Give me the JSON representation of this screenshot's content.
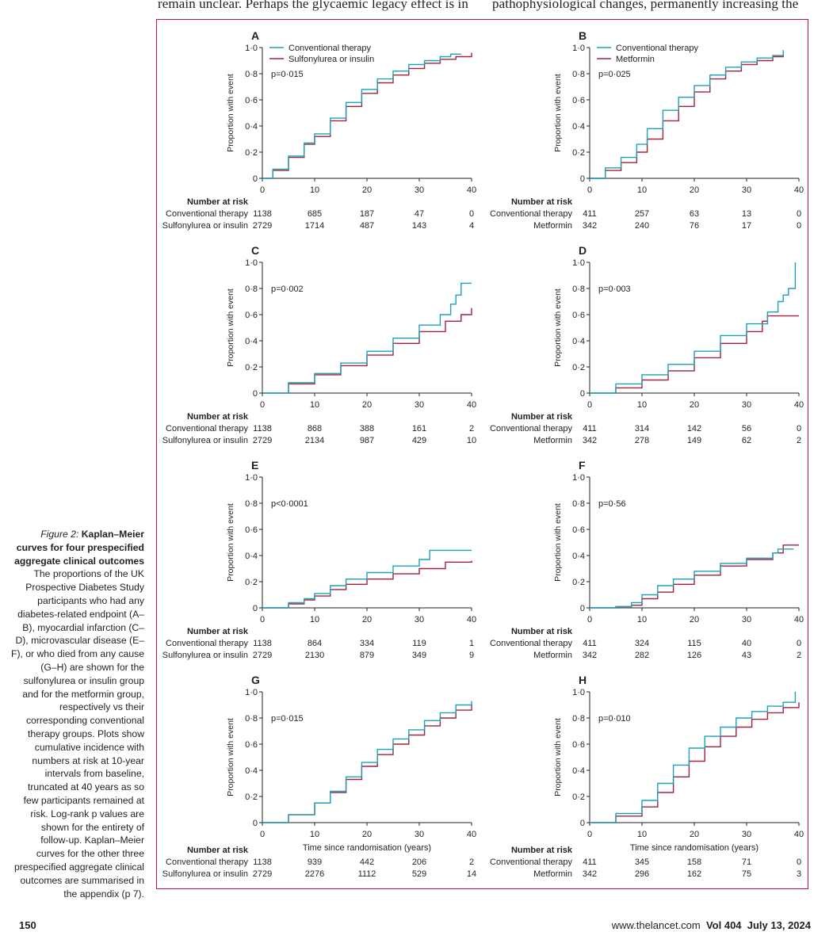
{
  "header": {
    "left_column_text": "remain unclear. Perhaps the glycaemic legacy effect is in",
    "right_column_text": "pathophysiological changes, permanently increasing the"
  },
  "figure": {
    "caption_label": "Figure 2:",
    "caption_title": "Kaplan–Meier curves for four prespecified aggregate clinical outcomes",
    "caption_body": "The proportions of the UK Prospective Diabetes Study participants who had any diabetes-related endpoint (A–B), myocardial infarction (C–D), microvascular disease (E–F), or who died from any cause (G–H) are shown for the sulfonylurea or insulin group and for the metformin group, respectively vs their corresponding conventional therapy groups. Plots show cumulative incidence with numbers at risk at 10-year intervals from baseline, truncated at 40 years as so few participants remained at risk. Log-rank p values are shown for the entirety of follow-up. Kaplan–Meier curves for the other three prespecified aggregate clinical outcomes are summarised in the appendix (p 7)."
  },
  "footer": {
    "page_number": "150",
    "journal": "www.thelancet.com",
    "volume": "Vol 404",
    "date": "July 13, 2024"
  },
  "colors": {
    "conventional": "#1aa3b8",
    "treatment": "#a3213f",
    "frame": "#c0143c"
  },
  "chart_data": [
    {
      "type": "line",
      "panel": "A",
      "title": "",
      "xlabel": "",
      "ylabel": "Proportion with event",
      "xlim": [
        0,
        40
      ],
      "ylim": [
        0,
        1
      ],
      "x_ticks": [
        0,
        10,
        20,
        30,
        40
      ],
      "y_ticks": [
        "0",
        "0·2",
        "0·4",
        "0·6",
        "0·8",
        "1·0"
      ],
      "legend": [
        "Conventional therapy",
        "Sulfonylurea or insulin"
      ],
      "legend_position": "top-left",
      "p_value": "p=0·015",
      "series": [
        {
          "name": "Conventional therapy",
          "x": [
            0,
            2,
            5,
            8,
            10,
            13,
            16,
            19,
            22,
            25,
            28,
            31,
            34,
            36,
            38
          ],
          "y": [
            0,
            0.07,
            0.17,
            0.27,
            0.34,
            0.46,
            0.58,
            0.68,
            0.76,
            0.82,
            0.87,
            0.9,
            0.93,
            0.95,
            0.95
          ]
        },
        {
          "name": "Sulfonylurea or insulin",
          "x": [
            0,
            2,
            5,
            8,
            10,
            13,
            16,
            19,
            22,
            25,
            28,
            31,
            34,
            37,
            40
          ],
          "y": [
            0,
            0.06,
            0.16,
            0.26,
            0.32,
            0.44,
            0.55,
            0.65,
            0.73,
            0.79,
            0.84,
            0.88,
            0.91,
            0.93,
            0.96
          ]
        }
      ],
      "risk_table": {
        "title": "Number at risk",
        "rows": [
          {
            "label": "Conventional therapy",
            "values": [
              "1138",
              "685",
              "187",
              "47",
              "0"
            ]
          },
          {
            "label": "Sulfonylurea or insulin",
            "values": [
              "2729",
              "1714",
              "487",
              "143",
              "4"
            ]
          }
        ]
      }
    },
    {
      "type": "line",
      "panel": "B",
      "title": "",
      "xlabel": "",
      "ylabel": "Proportion with event",
      "xlim": [
        0,
        40
      ],
      "ylim": [
        0,
        1
      ],
      "x_ticks": [
        0,
        10,
        20,
        30,
        40
      ],
      "y_ticks": [
        "0",
        "0·2",
        "0·4",
        "0·6",
        "0·8",
        "1·0"
      ],
      "legend": [
        "Conventional therapy",
        "Metformin"
      ],
      "legend_position": "top-left",
      "p_value": "p=0·025",
      "series": [
        {
          "name": "Conventional therapy",
          "x": [
            0,
            3,
            6,
            9,
            11,
            14,
            17,
            20,
            23,
            26,
            29,
            32,
            35,
            37
          ],
          "y": [
            0,
            0.08,
            0.16,
            0.26,
            0.38,
            0.52,
            0.62,
            0.71,
            0.79,
            0.85,
            0.89,
            0.92,
            0.94,
            0.98
          ]
        },
        {
          "name": "Metformin",
          "x": [
            0,
            3,
            6,
            9,
            11,
            14,
            17,
            20,
            23,
            26,
            29,
            32,
            35,
            37
          ],
          "y": [
            0,
            0.06,
            0.12,
            0.2,
            0.3,
            0.44,
            0.55,
            0.66,
            0.76,
            0.82,
            0.87,
            0.9,
            0.93,
            0.97
          ]
        }
      ],
      "risk_table": {
        "title": "Number at risk",
        "rows": [
          {
            "label": "Conventional therapy",
            "values": [
              "411",
              "257",
              "63",
              "13",
              "0"
            ]
          },
          {
            "label": "Metformin",
            "values": [
              "342",
              "240",
              "76",
              "17",
              "0"
            ]
          }
        ]
      }
    },
    {
      "type": "line",
      "panel": "C",
      "title": "",
      "xlabel": "",
      "ylabel": "Proportion with event",
      "xlim": [
        0,
        40
      ],
      "ylim": [
        0,
        1
      ],
      "x_ticks": [
        0,
        10,
        20,
        30,
        40
      ],
      "y_ticks": [
        "0",
        "0·2",
        "0·4",
        "0·6",
        "0·8",
        "1·0"
      ],
      "legend": [],
      "p_value": "p=0·002",
      "series": [
        {
          "name": "Conventional therapy",
          "x": [
            0,
            5,
            10,
            15,
            20,
            25,
            30,
            34,
            36,
            37,
            38,
            40
          ],
          "y": [
            0,
            0.08,
            0.15,
            0.23,
            0.32,
            0.42,
            0.52,
            0.6,
            0.68,
            0.75,
            0.84,
            0.84
          ]
        },
        {
          "name": "Sulfonylurea or insulin",
          "x": [
            0,
            5,
            10,
            15,
            20,
            25,
            30,
            35,
            38,
            40
          ],
          "y": [
            0,
            0.07,
            0.14,
            0.21,
            0.29,
            0.38,
            0.47,
            0.55,
            0.6,
            0.65
          ]
        }
      ],
      "risk_table": {
        "title": "Number at risk",
        "rows": [
          {
            "label": "Conventional therapy",
            "values": [
              "1138",
              "868",
              "388",
              "161",
              "2"
            ]
          },
          {
            "label": "Sulfonylurea or insulin",
            "values": [
              "2729",
              "2134",
              "987",
              "429",
              "10"
            ]
          }
        ]
      }
    },
    {
      "type": "line",
      "panel": "D",
      "title": "",
      "xlabel": "",
      "ylabel": "Proportion with event",
      "xlim": [
        0,
        40
      ],
      "ylim": [
        0,
        1
      ],
      "x_ticks": [
        0,
        10,
        20,
        30,
        40
      ],
      "y_ticks": [
        "0",
        "0·2",
        "0·4",
        "0·6",
        "0·8",
        "1·0"
      ],
      "legend": [],
      "p_value": "p=0·003",
      "series": [
        {
          "name": "Conventional therapy",
          "x": [
            0,
            5,
            10,
            15,
            20,
            25,
            30,
            34,
            36,
            37,
            38,
            39,
            39.3
          ],
          "y": [
            0,
            0.07,
            0.14,
            0.22,
            0.32,
            0.44,
            0.53,
            0.62,
            0.7,
            0.75,
            0.8,
            0.8,
            1.0
          ]
        },
        {
          "name": "Metformin",
          "x": [
            0,
            5,
            10,
            15,
            20,
            25,
            30,
            33,
            34,
            40
          ],
          "y": [
            0,
            0.04,
            0.1,
            0.17,
            0.27,
            0.38,
            0.47,
            0.55,
            0.59,
            0.59
          ]
        }
      ],
      "risk_table": {
        "title": "Number at risk",
        "rows": [
          {
            "label": "Conventional therapy",
            "values": [
              "411",
              "314",
              "142",
              "56",
              "0"
            ]
          },
          {
            "label": "Metformin",
            "values": [
              "342",
              "278",
              "149",
              "62",
              "2"
            ]
          }
        ]
      }
    },
    {
      "type": "line",
      "panel": "E",
      "title": "",
      "xlabel": "",
      "ylabel": "Proportion with event",
      "xlim": [
        0,
        40
      ],
      "ylim": [
        0,
        1
      ],
      "x_ticks": [
        0,
        10,
        20,
        30,
        40
      ],
      "y_ticks": [
        "0",
        "0·2",
        "0·4",
        "0·6",
        "0·8",
        "1·0"
      ],
      "legend": [],
      "p_value": "p<0·0001",
      "series": [
        {
          "name": "Conventional therapy",
          "x": [
            0,
            5,
            8,
            10,
            13,
            16,
            20,
            25,
            30,
            32,
            40
          ],
          "y": [
            0,
            0.04,
            0.07,
            0.11,
            0.17,
            0.22,
            0.27,
            0.32,
            0.37,
            0.44,
            0.44
          ]
        },
        {
          "name": "Sulfonylurea or insulin",
          "x": [
            0,
            5,
            8,
            10,
            13,
            16,
            20,
            25,
            30,
            35,
            40
          ],
          "y": [
            0,
            0.03,
            0.06,
            0.09,
            0.14,
            0.18,
            0.22,
            0.26,
            0.3,
            0.35,
            0.36
          ]
        }
      ],
      "risk_table": {
        "title": "Number at risk",
        "rows": [
          {
            "label": "Conventional therapy",
            "values": [
              "1138",
              "864",
              "334",
              "119",
              "1"
            ]
          },
          {
            "label": "Sulfonylurea or insulin",
            "values": [
              "2729",
              "2130",
              "879",
              "349",
              "9"
            ]
          }
        ]
      }
    },
    {
      "type": "line",
      "panel": "F",
      "title": "",
      "xlabel": "",
      "ylabel": "Proportion with event",
      "xlim": [
        0,
        40
      ],
      "ylim": [
        0,
        1
      ],
      "x_ticks": [
        0,
        10,
        20,
        30,
        40
      ],
      "y_ticks": [
        "0",
        "0·2",
        "0·4",
        "0·6",
        "0·8",
        "1·0"
      ],
      "legend": [],
      "p_value": "p=0·56",
      "series": [
        {
          "name": "Conventional therapy",
          "x": [
            0,
            5,
            8,
            10,
            13,
            16,
            20,
            25,
            30,
            35,
            36,
            39
          ],
          "y": [
            0,
            0.01,
            0.04,
            0.1,
            0.17,
            0.22,
            0.28,
            0.34,
            0.38,
            0.42,
            0.45,
            0.45
          ]
        },
        {
          "name": "Metformin",
          "x": [
            0,
            5,
            8,
            10,
            13,
            16,
            20,
            25,
            30,
            35,
            37,
            40
          ],
          "y": [
            0,
            0.01,
            0.02,
            0.07,
            0.12,
            0.18,
            0.25,
            0.32,
            0.37,
            0.42,
            0.48,
            0.48
          ]
        }
      ],
      "risk_table": {
        "title": "Number at risk",
        "rows": [
          {
            "label": "Conventional therapy",
            "values": [
              "411",
              "324",
              "115",
              "40",
              "0"
            ]
          },
          {
            "label": "Metformin",
            "values": [
              "342",
              "282",
              "126",
              "43",
              "2"
            ]
          }
        ]
      }
    },
    {
      "type": "line",
      "panel": "G",
      "title": "",
      "xlabel": "Time since randomisation (years)",
      "ylabel": "Proportion with event",
      "xlim": [
        0,
        40
      ],
      "ylim": [
        0,
        1
      ],
      "x_ticks": [
        0,
        10,
        20,
        30,
        40
      ],
      "y_ticks": [
        "0",
        "0·2",
        "0·4",
        "0·6",
        "0·8",
        "1·0"
      ],
      "legend": [],
      "p_value": "p=0·015",
      "series": [
        {
          "name": "Conventional therapy",
          "x": [
            0,
            5,
            10,
            13,
            16,
            19,
            22,
            25,
            28,
            31,
            34,
            37,
            40
          ],
          "y": [
            0,
            0.06,
            0.15,
            0.24,
            0.35,
            0.46,
            0.56,
            0.64,
            0.71,
            0.78,
            0.84,
            0.9,
            0.93
          ]
        },
        {
          "name": "Sulfonylurea or insulin",
          "x": [
            0,
            5,
            10,
            13,
            16,
            19,
            22,
            25,
            28,
            31,
            34,
            37,
            40
          ],
          "y": [
            0,
            0.06,
            0.15,
            0.23,
            0.33,
            0.43,
            0.52,
            0.6,
            0.67,
            0.74,
            0.8,
            0.86,
            0.9
          ]
        }
      ],
      "risk_table": {
        "title": "Number at risk",
        "rows": [
          {
            "label": "Conventional therapy",
            "values": [
              "1138",
              "939",
              "442",
              "206",
              "2"
            ]
          },
          {
            "label": "Sulfonylurea or insulin",
            "values": [
              "2729",
              "2276",
              "1112",
              "529",
              "14"
            ]
          }
        ]
      }
    },
    {
      "type": "line",
      "panel": "H",
      "title": "",
      "xlabel": "Time since randomisation (years)",
      "ylabel": "Proportion with event",
      "xlim": [
        0,
        40
      ],
      "ylim": [
        0,
        1
      ],
      "x_ticks": [
        0,
        10,
        20,
        30,
        40
      ],
      "y_ticks": [
        "0",
        "0·2",
        "0·4",
        "0·6",
        "0·8",
        "1·0"
      ],
      "legend": [],
      "p_value": "p=0·010",
      "series": [
        {
          "name": "Conventional therapy",
          "x": [
            0,
            5,
            10,
            13,
            16,
            19,
            22,
            25,
            28,
            31,
            34,
            37,
            39,
            39.3
          ],
          "y": [
            0,
            0.07,
            0.17,
            0.3,
            0.44,
            0.57,
            0.66,
            0.73,
            0.8,
            0.85,
            0.89,
            0.92,
            0.92,
            1.0
          ]
        },
        {
          "name": "Metformin",
          "x": [
            0,
            5,
            10,
            13,
            16,
            19,
            22,
            25,
            28,
            31,
            34,
            37,
            40
          ],
          "y": [
            0,
            0.05,
            0.12,
            0.23,
            0.35,
            0.47,
            0.58,
            0.66,
            0.73,
            0.79,
            0.84,
            0.88,
            0.92
          ]
        }
      ],
      "risk_table": {
        "title": "Number at risk",
        "rows": [
          {
            "label": "Conventional therapy",
            "values": [
              "411",
              "345",
              "158",
              "71",
              "0"
            ]
          },
          {
            "label": "Metformin",
            "values": [
              "342",
              "296",
              "162",
              "75",
              "3"
            ]
          }
        ]
      }
    }
  ]
}
